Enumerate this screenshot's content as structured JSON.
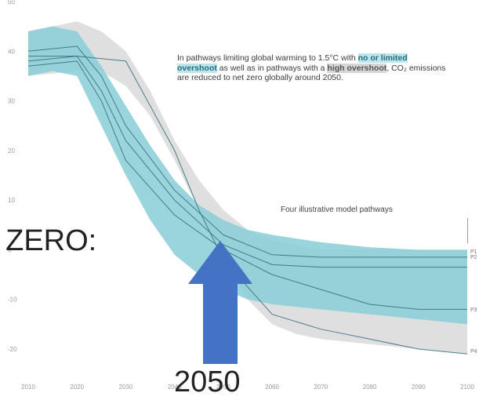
{
  "chart_data": {
    "type": "area",
    "title": "",
    "xlabel": "",
    "ylabel": "",
    "xlim": [
      2010,
      2100
    ],
    "ylim": [
      -20,
      50
    ],
    "x_ticks": [
      "2010",
      "2020",
      "2030",
      "2040",
      "2050",
      "2060",
      "2070",
      "2080",
      "2090",
      "2100"
    ],
    "y_ticks": [
      "50",
      "40",
      "30",
      "20",
      "10",
      "0",
      "-10",
      "-20"
    ],
    "grid": false,
    "bands": [
      {
        "name": "no or limited overshoot",
        "color": "#8ccfd9",
        "x": [
          2010,
          2015,
          2020,
          2025,
          2030,
          2035,
          2040,
          2045,
          2050,
          2055,
          2060,
          2070,
          2080,
          2090,
          2100
        ],
        "upper": [
          44,
          45,
          44,
          37,
          29,
          21,
          14,
          9,
          6,
          4,
          3,
          1.5,
          0.5,
          0,
          0
        ],
        "lower": [
          35,
          36,
          35,
          25,
          15,
          6,
          -1,
          -5,
          -8,
          -10,
          -11,
          -12,
          -13,
          -14,
          -15
        ]
      },
      {
        "name": "high overshoot",
        "color": "#dcdcdc",
        "x": [
          2010,
          2020,
          2025,
          2030,
          2035,
          2040,
          2045,
          2050,
          2055,
          2060,
          2065,
          2070,
          2080,
          2090,
          2100
        ],
        "upper": [
          44,
          46,
          44,
          40,
          32,
          22,
          14,
          8,
          4,
          2,
          1,
          0,
          0,
          0,
          0
        ],
        "lower": [
          35,
          36,
          36,
          33,
          27,
          18,
          8,
          -2,
          -10,
          -15,
          -17,
          -18,
          -19,
          -20,
          -21
        ]
      }
    ],
    "series": [
      {
        "name": "P1",
        "x": [
          2010,
          2020,
          2025,
          2030,
          2040,
          2050,
          2060,
          2070,
          2080,
          2090,
          2100
        ],
        "y": [
          40,
          41,
          35,
          25,
          12,
          3,
          -1,
          -1.5,
          -1.5,
          -1.5,
          -1.5
        ]
      },
      {
        "name": "P2",
        "x": [
          2010,
          2020,
          2025,
          2030,
          2040,
          2050,
          2060,
          2070,
          2080,
          2090,
          2100
        ],
        "y": [
          38,
          39,
          32,
          22,
          10,
          1,
          -3,
          -3.5,
          -3.5,
          -3.5,
          -3.5
        ]
      },
      {
        "name": "P3",
        "x": [
          2010,
          2020,
          2025,
          2030,
          2040,
          2050,
          2060,
          2070,
          2080,
          2090,
          2100
        ],
        "y": [
          37,
          38,
          30,
          18,
          7,
          0,
          -5,
          -8,
          -11,
          -12,
          -12
        ]
      },
      {
        "name": "P4",
        "x": [
          2010,
          2020,
          2030,
          2040,
          2045,
          2050,
          2060,
          2070,
          2080,
          2090,
          2100
        ],
        "y": [
          39,
          39,
          38,
          20,
          8,
          -2,
          -13,
          -16,
          -18,
          -20,
          -21
        ]
      }
    ],
    "annotation": {
      "before_1": "In pathways limiting global warming to 1.5°C with ",
      "hl_1": "no or limited overshoot",
      "mid_1": " as well as in pathways with a ",
      "hl_2": "high overshoot",
      "after_2": ", CO₂ emissions are reduced to net zero globally around 2050."
    },
    "pathways_label": "Four illustrative model pathways",
    "end_labels": [
      "P1",
      "P2",
      "P3",
      "P4"
    ]
  },
  "overlay": {
    "zero_text": "t ZERO:",
    "year_text": "2050",
    "arrow_color": "#4472c4"
  }
}
